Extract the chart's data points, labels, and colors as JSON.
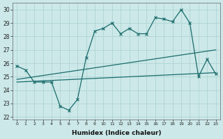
{
  "xlabel": "Humidex (Indice chaleur)",
  "ylabel": "",
  "bg_color": "#cce8e8",
  "line_color": "#1a6b6b",
  "grid_color": "#aad0d0",
  "ylim": [
    21.8,
    30.5
  ],
  "xlim": [
    -0.5,
    23.5
  ],
  "yticks": [
    22,
    23,
    24,
    25,
    26,
    27,
    28,
    29,
    30
  ],
  "xticks": [
    0,
    1,
    2,
    3,
    4,
    5,
    6,
    7,
    8,
    9,
    10,
    11,
    12,
    13,
    14,
    15,
    16,
    17,
    18,
    19,
    20,
    21,
    22,
    23
  ],
  "line1_x": [
    0,
    1,
    2,
    3,
    4,
    5,
    6,
    7,
    8,
    9,
    10,
    11,
    12,
    13,
    14,
    15,
    16,
    17,
    18,
    19,
    20,
    21,
    22,
    23
  ],
  "line1_y": [
    25.8,
    25.5,
    24.6,
    24.6,
    24.6,
    22.8,
    22.5,
    23.3,
    26.4,
    28.4,
    28.6,
    29.0,
    28.2,
    28.6,
    28.2,
    28.2,
    29.4,
    29.3,
    29.1,
    30.0,
    29.0,
    25.0,
    26.3,
    25.2
  ],
  "line2_x": [
    0,
    23
  ],
  "line2_y": [
    24.8,
    27.0
  ],
  "line3_x": [
    0,
    23
  ],
  "line3_y": [
    24.6,
    25.3
  ]
}
